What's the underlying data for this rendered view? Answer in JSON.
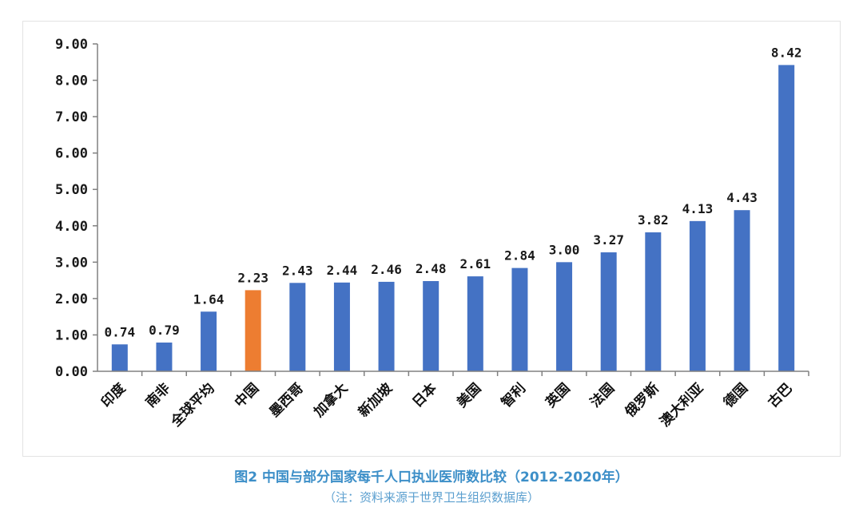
{
  "chart_data": {
    "type": "bar",
    "categories": [
      "印度",
      "南非",
      "全球平均",
      "中国",
      "墨西哥",
      "加拿大",
      "新加坡",
      "日本",
      "美国",
      "智利",
      "英国",
      "法国",
      "俄罗斯",
      "澳大利亚",
      "德国",
      "古巴"
    ],
    "values": [
      0.74,
      0.79,
      1.64,
      2.23,
      2.43,
      2.44,
      2.46,
      2.48,
      2.61,
      2.84,
      3.0,
      3.27,
      3.82,
      4.13,
      4.43,
      8.42
    ],
    "value_labels": [
      "0.74",
      "0.79",
      "1.64",
      "2.23",
      "2.43",
      "2.44",
      "2.46",
      "2.48",
      "2.61",
      "2.84",
      "3.00",
      "3.27",
      "3.82",
      "4.13",
      "4.43",
      "8.42"
    ],
    "ylim": [
      0,
      9
    ],
    "yticks": [
      "0.00",
      "1.00",
      "2.00",
      "3.00",
      "4.00",
      "5.00",
      "6.00",
      "7.00",
      "8.00",
      "9.00"
    ],
    "bar_color": "#4472c4",
    "highlight_color": "#ed7d31",
    "highlight_category": "中国",
    "grid": false,
    "legend": "none"
  },
  "caption": {
    "title": "图2  中国与部分国家每千人口执业医师数比较（2012-2020年）",
    "note": "（注：资料来源于世界卫生组织数据库）"
  }
}
